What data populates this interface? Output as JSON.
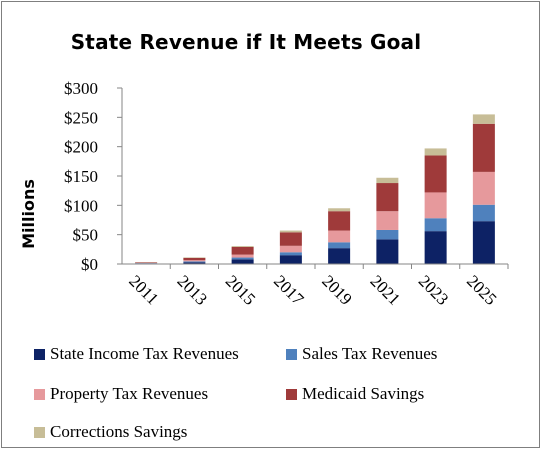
{
  "chart_data": {
    "type": "bar",
    "stacked": true,
    "title": "State Revenue if It Meets Goal",
    "ylabel": "Millions",
    "xlabel": "",
    "ylim": [
      0,
      300
    ],
    "yticks": [
      "$0",
      "$50",
      "$100",
      "$150",
      "$200",
      "$250",
      "$300"
    ],
    "ytick_values": [
      0,
      50,
      100,
      150,
      200,
      250,
      300
    ],
    "grid": false,
    "legend_position": "bottom",
    "categories": [
      "2011",
      "2013",
      "2015",
      "2017",
      "2019",
      "2021",
      "2023",
      "2025"
    ],
    "series": [
      {
        "name": "State Income Tax Revenues",
        "color": "#0d2265",
        "values": [
          1,
          3,
          8,
          15,
          27,
          42,
          56,
          73
        ]
      },
      {
        "name": "Sales Tax Revenues",
        "color": "#4f81bd",
        "values": [
          0.5,
          1.5,
          3,
          5,
          10,
          16,
          22,
          28
        ]
      },
      {
        "name": "Property Tax Revenues",
        "color": "#e6999c",
        "values": [
          0.5,
          2,
          5,
          11,
          20,
          32,
          44,
          56
        ]
      },
      {
        "name": "Medicaid Savings",
        "color": "#9f3a3a",
        "values": [
          1,
          4,
          13,
          23,
          33,
          48,
          63,
          82
        ]
      },
      {
        "name": "Corrections Savings",
        "color": "#c7bd97",
        "values": [
          0.3,
          0.8,
          1.5,
          3,
          5,
          9,
          12,
          16
        ]
      }
    ]
  },
  "legend": {
    "items": [
      {
        "label": "State Income Tax Revenues",
        "color": "#0d2265"
      },
      {
        "label": "Sales Tax Revenues",
        "color": "#4f81bd"
      },
      {
        "label": "Property Tax Revenues",
        "color": "#e6999c"
      },
      {
        "label": "Medicaid Savings",
        "color": "#9f3a3a"
      },
      {
        "label": "Corrections Savings",
        "color": "#c7bd97"
      }
    ]
  }
}
